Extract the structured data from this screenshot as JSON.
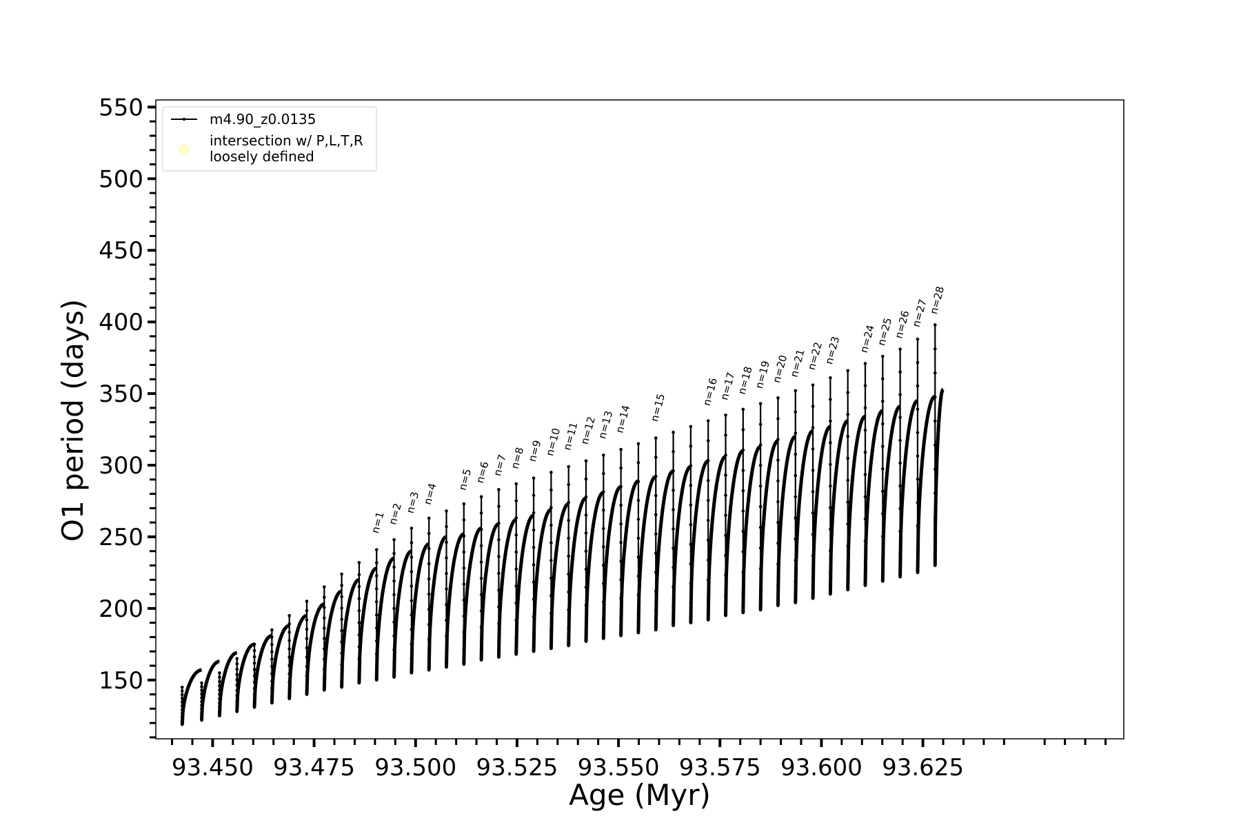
{
  "chart_data": {
    "type": "line",
    "title": "",
    "xlabel": "Age (Myr)",
    "ylabel": "O1 period (days)",
    "xlim": [
      93.436,
      93.6745
    ],
    "ylim": [
      109,
      555
    ],
    "xticks": [
      "93.450",
      "93.475",
      "93.500",
      "93.525",
      "93.550",
      "93.575",
      "93.600",
      "93.625"
    ],
    "yticks": [
      "150",
      "200",
      "250",
      "300",
      "350",
      "400",
      "450",
      "500",
      "550"
    ],
    "grid": false,
    "legend_position": "top-left",
    "legend": [
      {
        "label": "m4.90_z0.0135",
        "marker": "line-with-points",
        "color": "#000000"
      },
      {
        "label": "intersection w/ P,L,T,R\nloosely defined",
        "marker": "circle",
        "color": "#ffffcc"
      }
    ],
    "series": [
      {
        "name": "m4.90_z0.0135",
        "color": "#000000",
        "cycles": [
          {
            "x_start": 93.4425,
            "x_end": 93.4473,
            "floor": 119,
            "top": 157,
            "spike": 145
          },
          {
            "x_start": 93.4473,
            "x_end": 93.4517,
            "floor": 122,
            "top": 163,
            "spike": 148
          },
          {
            "x_start": 93.4517,
            "x_end": 93.456,
            "floor": 125,
            "top": 169,
            "spike": 155
          },
          {
            "x_start": 93.456,
            "x_end": 93.4603,
            "floor": 128,
            "top": 175,
            "spike": 165
          },
          {
            "x_start": 93.4603,
            "x_end": 93.4646,
            "floor": 131,
            "top": 181,
            "spike": 175
          },
          {
            "x_start": 93.4646,
            "x_end": 93.4689,
            "floor": 134,
            "top": 188,
            "spike": 185
          },
          {
            "x_start": 93.4689,
            "x_end": 93.4732,
            "floor": 137,
            "top": 195,
            "spike": 195
          },
          {
            "x_start": 93.4732,
            "x_end": 93.4775,
            "floor": 140,
            "top": 203,
            "spike": 205
          },
          {
            "x_start": 93.4775,
            "x_end": 93.4818,
            "floor": 143,
            "top": 212,
            "spike": 215
          },
          {
            "x_start": 93.4818,
            "x_end": 93.4861,
            "floor": 145,
            "top": 220,
            "spike": 224
          },
          {
            "x_start": 93.4861,
            "x_end": 93.4904,
            "floor": 148,
            "top": 228,
            "spike": 232
          },
          {
            "x_start": 93.4904,
            "x_end": 93.4947,
            "floor": 150,
            "top": 235,
            "spike": 241
          },
          {
            "x_start": 93.4947,
            "x_end": 93.499,
            "floor": 152,
            "top": 240,
            "spike": 248
          },
          {
            "x_start": 93.499,
            "x_end": 93.5033,
            "floor": 155,
            "top": 245,
            "spike": 256
          },
          {
            "x_start": 93.5033,
            "x_end": 93.5076,
            "floor": 157,
            "top": 250,
            "spike": 263
          },
          {
            "x_start": 93.5076,
            "x_end": 93.5119,
            "floor": 159,
            "top": 252,
            "spike": 268
          },
          {
            "x_start": 93.5119,
            "x_end": 93.5162,
            "floor": 161,
            "top": 256,
            "spike": 273
          },
          {
            "x_start": 93.5162,
            "x_end": 93.5205,
            "floor": 164,
            "top": 259,
            "spike": 278
          },
          {
            "x_start": 93.5205,
            "x_end": 93.5248,
            "floor": 166,
            "top": 262,
            "spike": 283
          },
          {
            "x_start": 93.5248,
            "x_end": 93.5291,
            "floor": 168,
            "top": 265,
            "spike": 287
          },
          {
            "x_start": 93.5291,
            "x_end": 93.5334,
            "floor": 170,
            "top": 269,
            "spike": 291
          },
          {
            "x_start": 93.5334,
            "x_end": 93.5377,
            "floor": 172,
            "top": 273,
            "spike": 295
          },
          {
            "x_start": 93.5377,
            "x_end": 93.542,
            "floor": 174,
            "top": 277,
            "spike": 299
          },
          {
            "x_start": 93.542,
            "x_end": 93.5463,
            "floor": 177,
            "top": 281,
            "spike": 303
          },
          {
            "x_start": 93.5463,
            "x_end": 93.5506,
            "floor": 179,
            "top": 285,
            "spike": 307
          },
          {
            "x_start": 93.5506,
            "x_end": 93.5549,
            "floor": 181,
            "top": 289,
            "spike": 311
          },
          {
            "x_start": 93.5549,
            "x_end": 93.5592,
            "floor": 183,
            "top": 292,
            "spike": 315
          },
          {
            "x_start": 93.5592,
            "x_end": 93.5635,
            "floor": 185,
            "top": 296,
            "spike": 319
          },
          {
            "x_start": 93.5635,
            "x_end": 93.5678,
            "floor": 188,
            "top": 299,
            "spike": 323
          },
          {
            "x_start": 93.5678,
            "x_end": 93.5721,
            "floor": 190,
            "top": 303,
            "spike": 327
          },
          {
            "x_start": 93.5721,
            "x_end": 93.5764,
            "floor": 192,
            "top": 306,
            "spike": 331
          },
          {
            "x_start": 93.5764,
            "x_end": 93.5807,
            "floor": 195,
            "top": 310,
            "spike": 335
          },
          {
            "x_start": 93.5807,
            "x_end": 93.585,
            "floor": 197,
            "top": 313,
            "spike": 339
          },
          {
            "x_start": 93.585,
            "x_end": 93.5893,
            "floor": 199,
            "top": 317,
            "spike": 343
          },
          {
            "x_start": 93.5893,
            "x_end": 93.5936,
            "floor": 202,
            "top": 320,
            "spike": 347
          },
          {
            "x_start": 93.5936,
            "x_end": 93.5979,
            "floor": 204,
            "top": 324,
            "spike": 352
          },
          {
            "x_start": 93.5979,
            "x_end": 93.6022,
            "floor": 207,
            "top": 327,
            "spike": 356
          },
          {
            "x_start": 93.6022,
            "x_end": 93.6065,
            "floor": 210,
            "top": 331,
            "spike": 361
          },
          {
            "x_start": 93.6065,
            "x_end": 93.6108,
            "floor": 213,
            "top": 334,
            "spike": 366
          },
          {
            "x_start": 93.6108,
            "x_end": 93.6151,
            "floor": 216,
            "top": 338,
            "spike": 371
          },
          {
            "x_start": 93.6151,
            "x_end": 93.6194,
            "floor": 219,
            "top": 341,
            "spike": 376
          },
          {
            "x_start": 93.6194,
            "x_end": 93.6237,
            "floor": 222,
            "top": 345,
            "spike": 381
          },
          {
            "x_start": 93.6237,
            "x_end": 93.628,
            "floor": 225,
            "top": 348,
            "spike": 388
          },
          {
            "x_start": 93.628,
            "x_end": 93.63,
            "floor": 230,
            "top": 353,
            "spike": 398
          }
        ]
      }
    ],
    "annotations": [
      {
        "text": "n=1",
        "x": 93.4908,
        "y": 252
      },
      {
        "text": "n=2",
        "x": 93.4951,
        "y": 258
      },
      {
        "text": "n=3",
        "x": 93.4994,
        "y": 266
      },
      {
        "text": "n=4",
        "x": 93.5037,
        "y": 272
      },
      {
        "text": "n=5",
        "x": 93.5123,
        "y": 282
      },
      {
        "text": "n=6",
        "x": 93.5166,
        "y": 287
      },
      {
        "text": "n=7",
        "x": 93.5209,
        "y": 292
      },
      {
        "text": "n=8",
        "x": 93.5252,
        "y": 297
      },
      {
        "text": "n=9",
        "x": 93.5295,
        "y": 302
      },
      {
        "text": "n=10",
        "x": 93.5338,
        "y": 306
      },
      {
        "text": "n=11",
        "x": 93.5381,
        "y": 310
      },
      {
        "text": "n=12",
        "x": 93.5424,
        "y": 314
      },
      {
        "text": "n=13",
        "x": 93.5467,
        "y": 318
      },
      {
        "text": "n=14",
        "x": 93.551,
        "y": 322
      },
      {
        "text": "n=15",
        "x": 93.5596,
        "y": 330
      },
      {
        "text": "n=16",
        "x": 93.5725,
        "y": 341
      },
      {
        "text": "n=17",
        "x": 93.5768,
        "y": 345
      },
      {
        "text": "n=18",
        "x": 93.5811,
        "y": 349
      },
      {
        "text": "n=19",
        "x": 93.5854,
        "y": 353
      },
      {
        "text": "n=20",
        "x": 93.5897,
        "y": 357
      },
      {
        "text": "n=21",
        "x": 93.594,
        "y": 361
      },
      {
        "text": "n=22",
        "x": 93.5983,
        "y": 366
      },
      {
        "text": "n=23",
        "x": 93.6026,
        "y": 370
      },
      {
        "text": "n=24",
        "x": 93.6112,
        "y": 378
      },
      {
        "text": "n=25",
        "x": 93.6155,
        "y": 383
      },
      {
        "text": "n=26",
        "x": 93.6198,
        "y": 388
      },
      {
        "text": "n=27",
        "x": 93.6241,
        "y": 396
      },
      {
        "text": "n=28",
        "x": 93.6284,
        "y": 405
      }
    ]
  }
}
